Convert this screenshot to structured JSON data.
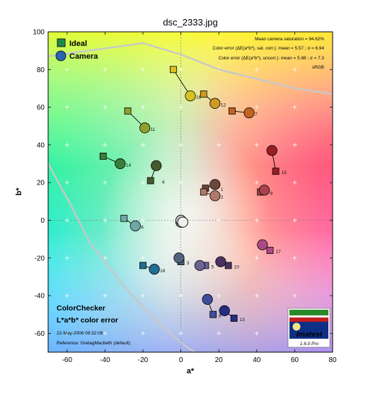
{
  "chart_data": {
    "type": "scatter",
    "title": "dsc_2333.jpg",
    "xlabel": "a*",
    "ylabel": "b*",
    "xlim": [
      -70,
      80
    ],
    "ylim": [
      -70,
      100
    ],
    "xticks": [
      -60,
      -40,
      -20,
      0,
      20,
      40,
      60,
      80
    ],
    "yticks": [
      -60,
      -40,
      -20,
      0,
      20,
      40,
      60,
      80,
      100
    ],
    "grid": "dotted-plus",
    "legend": {
      "position": "top-left",
      "entries": [
        "Ideal",
        "Camera"
      ]
    },
    "info_lines": [
      "Mean camera saturation = 94.62%",
      "Color error (ΔE(a*b*), sat. corr.): mean = 5.57 ; σ = 6.94",
      "Color error (ΔE(a*b*), uncorr.): mean = 5.88 ; σ = 7.3",
      "sRGB"
    ],
    "footer": {
      "title1": "ColorChecker",
      "title2": "L*a*b* color error",
      "date": "22-May-2006 09:32:08",
      "reference": "Reference: GretagMacbeth (default)"
    },
    "logo": {
      "text": "Imatest",
      "version": "1.6.0 Pro"
    },
    "series": [
      {
        "name": "Ideal",
        "marker": "square",
        "points": [
          {
            "id": 1,
            "a": 13,
            "b": 17
          },
          {
            "id": 2,
            "a": 12,
            "b": 15
          },
          {
            "id": 3,
            "a": 0,
            "b": -22
          },
          {
            "id": 4,
            "a": -16,
            "b": 21
          },
          {
            "id": 5,
            "a": 13,
            "b": -24
          },
          {
            "id": 6,
            "a": -30,
            "b": 1
          },
          {
            "id": 7,
            "a": 27,
            "b": 58
          },
          {
            "id": 8,
            "a": 17,
            "b": -50
          },
          {
            "id": 9,
            "a": 42,
            "b": 15
          },
          {
            "id": 10,
            "a": 25,
            "b": -24
          },
          {
            "id": 11,
            "a": -28,
            "b": 58
          },
          {
            "id": 12,
            "a": 12,
            "b": 67
          },
          {
            "id": 13,
            "a": 28,
            "b": -52
          },
          {
            "id": 14,
            "a": -41,
            "b": 34
          },
          {
            "id": 15,
            "a": 50,
            "b": 26
          },
          {
            "id": 16,
            "a": -4,
            "b": 80
          },
          {
            "id": 17,
            "a": 47,
            "b": -16
          },
          {
            "id": 18,
            "a": -20,
            "b": -24
          },
          {
            "id": 19,
            "a": 0,
            "b": 0
          },
          {
            "id": 20,
            "a": 0,
            "b": 0
          },
          {
            "id": 21,
            "a": 0,
            "b": 0
          },
          {
            "id": 22,
            "a": 0,
            "b": 0
          },
          {
            "id": 23,
            "a": 0,
            "b": 0
          },
          {
            "id": 24,
            "a": 0,
            "b": 0
          }
        ]
      },
      {
        "name": "Camera",
        "marker": "circle",
        "points": [
          {
            "id": 1,
            "a": 18,
            "b": 19
          },
          {
            "id": 2,
            "a": 18,
            "b": 13
          },
          {
            "id": 3,
            "a": -1,
            "b": -20
          },
          {
            "id": 4,
            "a": -13,
            "b": 29
          },
          {
            "id": 5,
            "a": 10,
            "b": -24
          },
          {
            "id": 6,
            "a": -24,
            "b": -3
          },
          {
            "id": 7,
            "a": 36,
            "b": 57
          },
          {
            "id": 8,
            "a": 14,
            "b": -42
          },
          {
            "id": 9,
            "a": 44,
            "b": 16
          },
          {
            "id": 10,
            "a": 21,
            "b": -22
          },
          {
            "id": 11,
            "a": -19,
            "b": 49
          },
          {
            "id": 12,
            "a": 18,
            "b": 62
          },
          {
            "id": 13,
            "a": 23,
            "b": -48
          },
          {
            "id": 14,
            "a": -32,
            "b": 30
          },
          {
            "id": 15,
            "a": 48,
            "b": 37
          },
          {
            "id": 16,
            "a": 5,
            "b": 66
          },
          {
            "id": 17,
            "a": 43,
            "b": -13
          },
          {
            "id": 18,
            "a": -14,
            "b": -26
          },
          {
            "id": 19,
            "a": 1,
            "b": -1
          },
          {
            "id": 20,
            "a": 0,
            "b": 0
          },
          {
            "id": 21,
            "a": 0,
            "b": -1
          },
          {
            "id": 22,
            "a": 1,
            "b": -1
          },
          {
            "id": 23,
            "a": 0,
            "b": 0
          },
          {
            "id": 24,
            "a": 0,
            "b": -1
          }
        ]
      }
    ],
    "gamut_outline": {
      "color": "#c8c8c8",
      "upper": [
        [
          -70,
          87
        ],
        [
          -20,
          94
        ],
        [
          0,
          88
        ],
        [
          20,
          80
        ],
        [
          40,
          75
        ],
        [
          60,
          70
        ],
        [
          80,
          67
        ]
      ],
      "lower": [
        [
          -70,
          30
        ],
        [
          -58,
          8
        ],
        [
          -48,
          -12
        ],
        [
          -40,
          -22
        ],
        [
          -30,
          -35
        ],
        [
          -20,
          -46
        ],
        [
          -10,
          -56
        ],
        [
          0,
          -65
        ],
        [
          10,
          -72
        ]
      ]
    },
    "patch_colors": {
      "1": "#6b4838",
      "2": "#b07a6a",
      "3": "#52637e",
      "4": "#475a2e",
      "5": "#6c6494",
      "6": "#6ea8a4",
      "7": "#c4631e",
      "8": "#3c4d9c",
      "9": "#a8434e",
      "10": "#4a3260",
      "11": "#90a02e",
      "12": "#d09a22",
      "13": "#232e80",
      "14": "#3a7f3c",
      "15": "#9a1e26",
      "16": "#d8c122",
      "17": "#ac4a88",
      "18": "#216e96",
      "19": "#eeeeee",
      "20": "#c0c0c0",
      "21": "#9a9a9a",
      "22": "#707070",
      "23": "#4a4a4a",
      "24": "#262626"
    }
  }
}
